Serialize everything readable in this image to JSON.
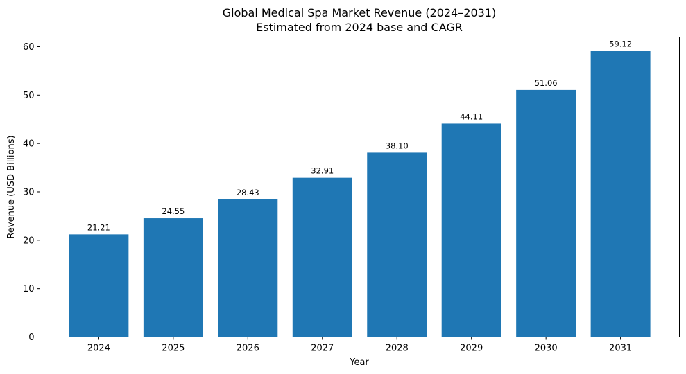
{
  "chart_data": {
    "type": "bar",
    "title": "Global Medical Spa Market Revenue (2024–2031)",
    "subtitle": "Estimated from 2024 base and CAGR",
    "xlabel": "Year",
    "ylabel": "Revenue (USD Billions)",
    "categories": [
      "2024",
      "2025",
      "2026",
      "2027",
      "2028",
      "2029",
      "2030",
      "2031"
    ],
    "values": [
      21.21,
      24.55,
      28.43,
      32.91,
      38.1,
      44.11,
      51.06,
      59.12
    ],
    "data_labels": [
      "21.21",
      "24.55",
      "28.43",
      "32.91",
      "38.10",
      "44.11",
      "51.06",
      "59.12"
    ],
    "ylim": [
      0,
      62
    ],
    "yticks": [
      0,
      10,
      20,
      30,
      40,
      50,
      60
    ],
    "grid": false,
    "bar_color": "#1f77b4"
  }
}
